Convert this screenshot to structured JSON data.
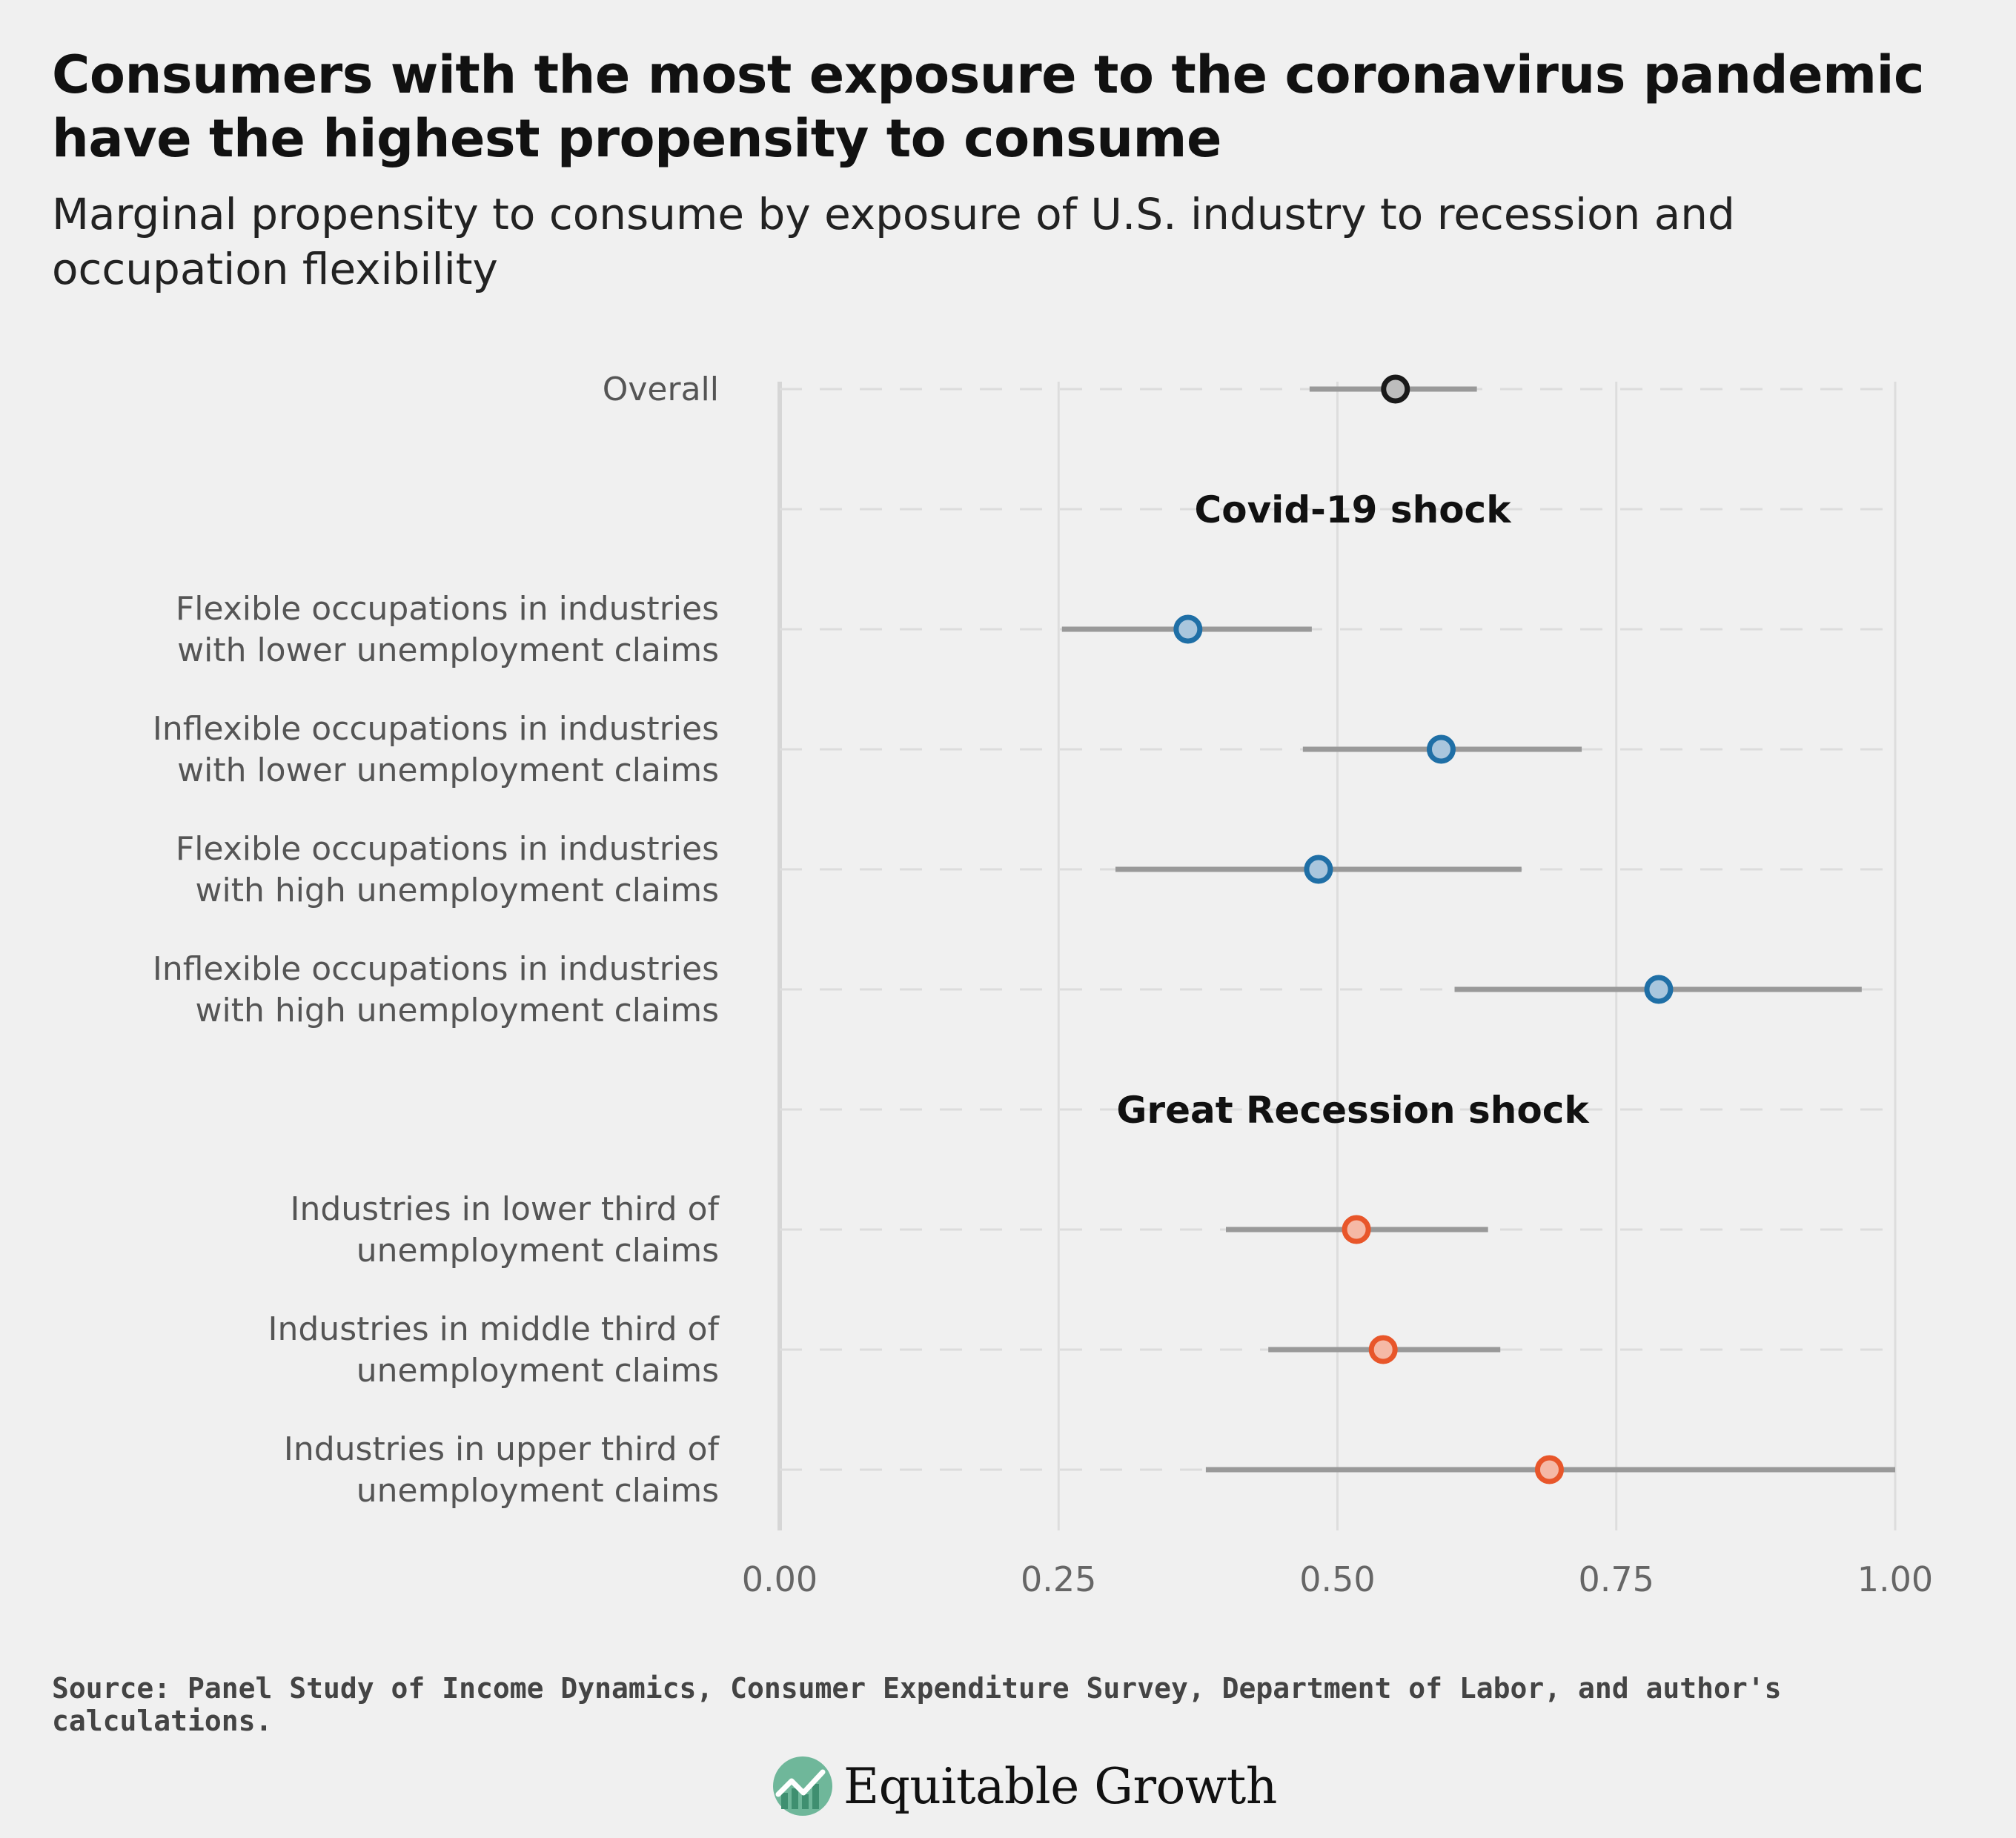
{
  "header": {
    "title": "Consumers with the most exposure to the coronavirus pandemic have the highest propensity to consume",
    "subtitle": "Marginal propensity to consume by exposure of U.S. industry to recession and occupation flexibility"
  },
  "footer": {
    "source": "Source: Panel Study of Income Dynamics, Consumer Expenditure Survey, Department of Labor, and author's calculations.",
    "logo_text": "Equitable Growth"
  },
  "colors": {
    "overall": "#1a1a1a",
    "covid": "#1f6fa6",
    "recession": "#e8562a",
    "interval": "#999999",
    "point_fill_overall": "#bdbdbd",
    "point_fill_covid": "#a9c6dd",
    "point_fill_recession": "#f5b9a6"
  },
  "chart_data": {
    "type": "scatter",
    "xlim": [
      0,
      1
    ],
    "xticks": [
      "0.00",
      "0.25",
      "0.50",
      "0.75",
      "1.00"
    ],
    "xtick_values": [
      0,
      0.25,
      0.5,
      0.75,
      1.0
    ],
    "grid": true,
    "group_labels": [
      "Covid-19 shock",
      "Great Recession shock"
    ],
    "rows": [
      {
        "label": [
          "Overall"
        ],
        "group": "overall",
        "value": 0.552,
        "low": 0.475,
        "high": 0.625
      },
      {
        "label": [
          "Covid-19 shock"
        ],
        "group": "header"
      },
      {
        "label": [
          "Flexible occupations in industries",
          "with lower unemployment claims"
        ],
        "group": "covid",
        "value": 0.366,
        "low": 0.253,
        "high": 0.477
      },
      {
        "label": [
          "Inflexible occupations in industries",
          "with lower unemployment claims"
        ],
        "group": "covid",
        "value": 0.593,
        "low": 0.469,
        "high": 0.719
      },
      {
        "label": [
          "Flexible occupations in industries",
          "with high unemployment claims"
        ],
        "group": "covid",
        "value": 0.483,
        "low": 0.301,
        "high": 0.665
      },
      {
        "label": [
          "Inflexible occupations in industries",
          "with high unemployment claims"
        ],
        "group": "covid",
        "value": 0.788,
        "low": 0.605,
        "high": 0.97
      },
      {
        "label": [
          "Great Recession shock"
        ],
        "group": "header"
      },
      {
        "label": [
          "Industries in lower third of",
          "unemployment claims"
        ],
        "group": "recession",
        "value": 0.517,
        "low": 0.4,
        "high": 0.635
      },
      {
        "label": [
          "Industries in middle third of",
          "unemployment claims"
        ],
        "group": "recession",
        "value": 0.541,
        "low": 0.438,
        "high": 0.646
      },
      {
        "label": [
          "Industries in upper third of",
          "unemployment claims"
        ],
        "group": "recession",
        "value": 0.69,
        "low": 0.382,
        "high": 1.0
      }
    ]
  }
}
